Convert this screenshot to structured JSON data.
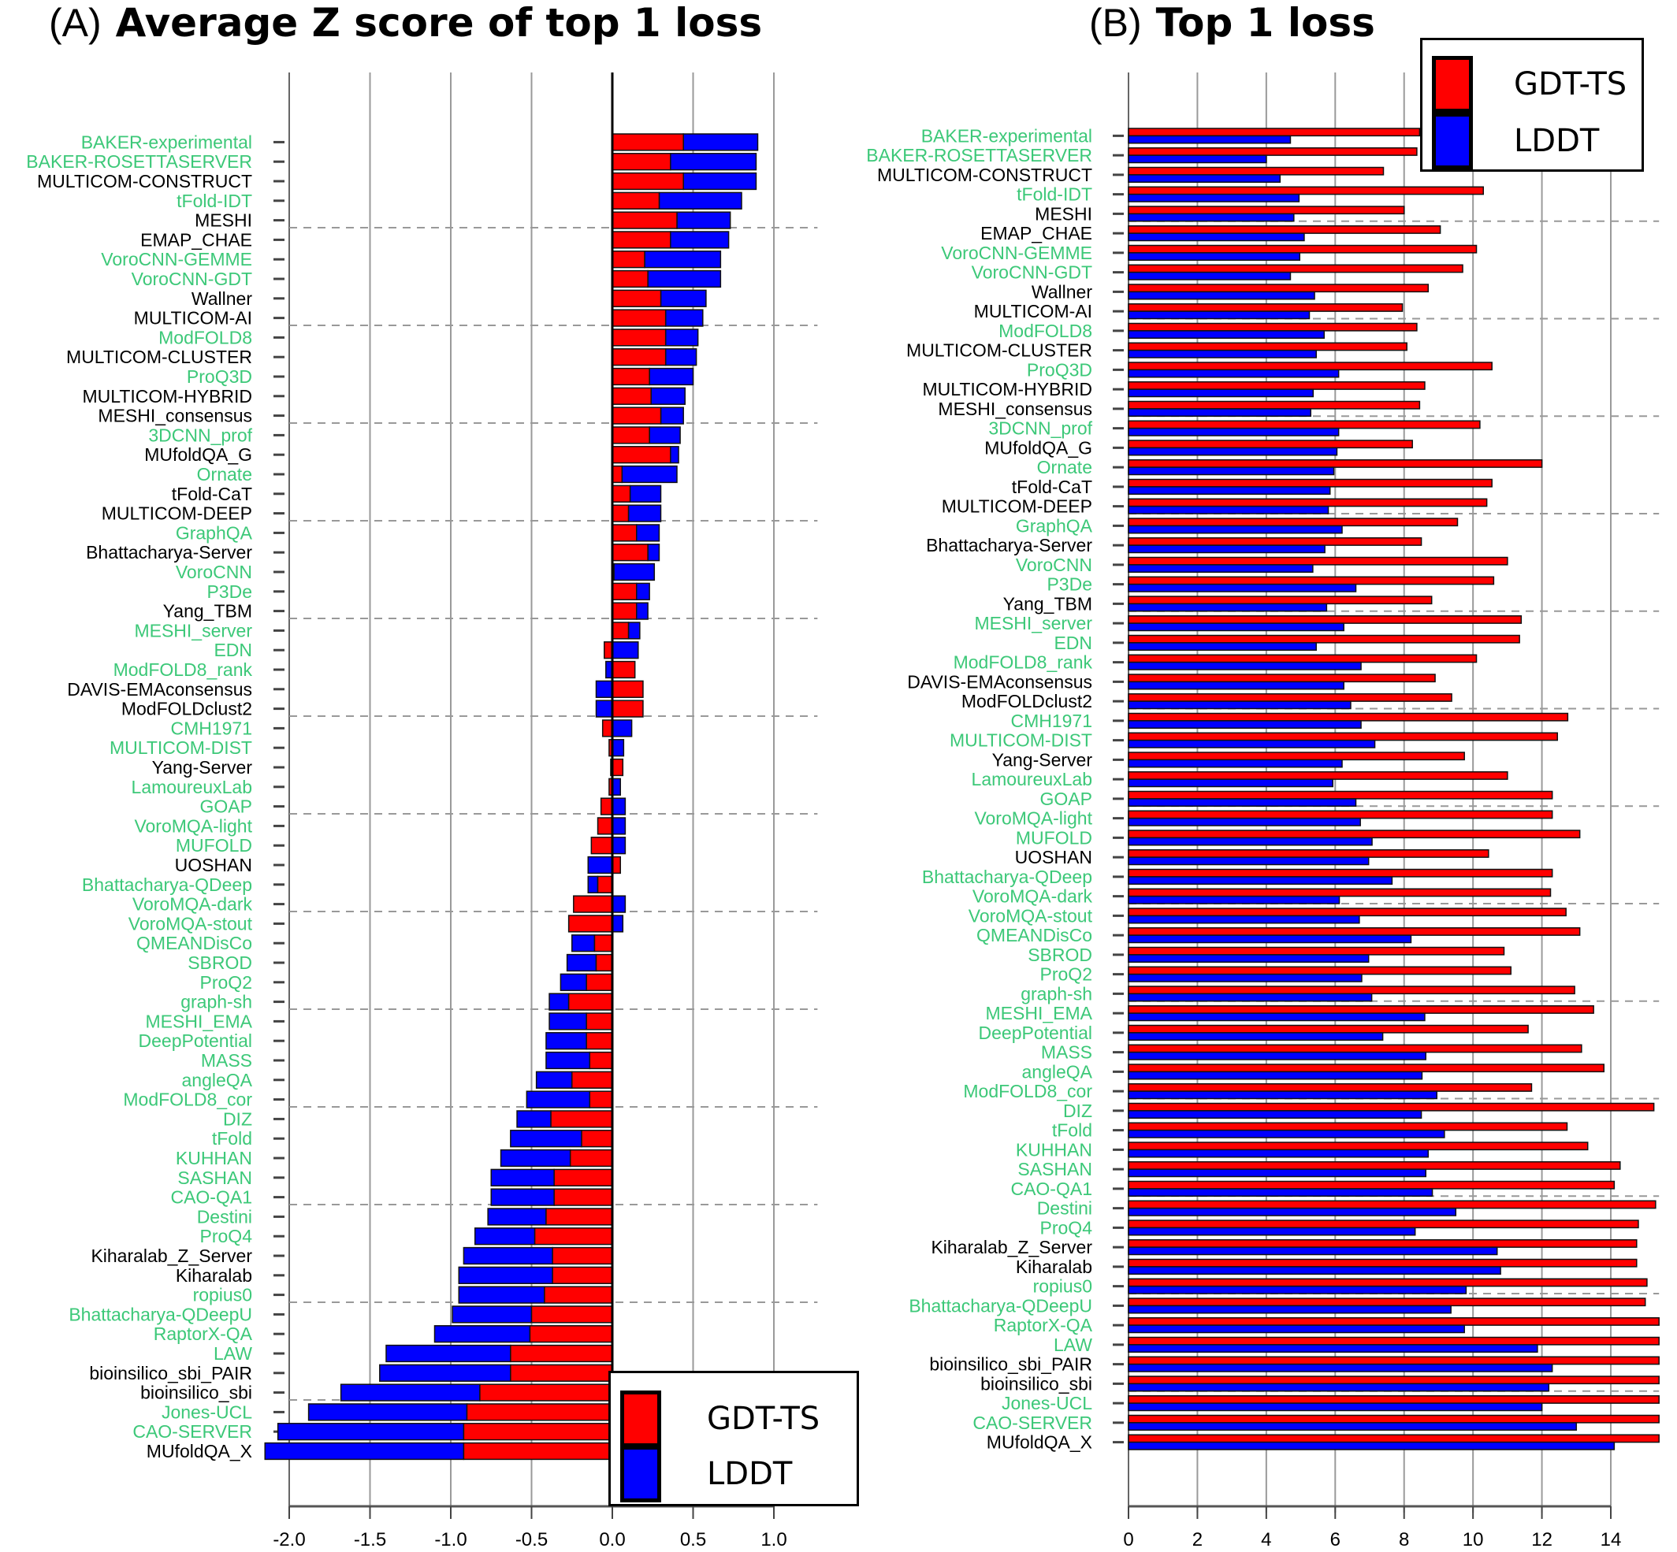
{
  "colors": {
    "gdt": "#ff0000",
    "lddt": "#0000ff",
    "label_highlight": "#3cc878",
    "label_default": "#000000",
    "grid": "#9a9a9a"
  },
  "chart_data": [
    {
      "id": "A",
      "type": "bar",
      "orientation": "horizontal",
      "stacked": true,
      "panel_letter": "(A)",
      "title": "Average Z score of top 1 loss",
      "xlabel": "",
      "ylabel": "",
      "xlim": [
        -2.07,
        1.27
      ],
      "xticks": [
        -2.0,
        -1.5,
        -1.0,
        -0.5,
        0.0,
        0.5,
        1.0
      ],
      "xtick_labels": [
        "-2.0",
        "-1.5",
        "-1.0",
        "-0.5",
        "0.0",
        "0.5",
        "1.0"
      ],
      "grid": true,
      "legend_position": "bottom-right",
      "legend": [
        "GDT-TS",
        "LDDT"
      ],
      "series": [
        {
          "name": "GDT-TS",
          "color": "#ff0000",
          "values": [
            0.44,
            0.36,
            0.44,
            0.29,
            0.4,
            0.36,
            0.2,
            0.22,
            0.3,
            0.33,
            0.33,
            0.33,
            0.23,
            0.24,
            0.3,
            0.23,
            0.36,
            0.06,
            0.11,
            0.1,
            0.15,
            0.22,
            0.01,
            0.15,
            0.15,
            0.1,
            -0.05,
            0.14,
            0.19,
            0.19,
            -0.06,
            -0.02,
            0.065,
            -0.02,
            -0.07,
            -0.09,
            -0.13,
            0.05,
            -0.09,
            -0.24,
            -0.27,
            -0.11,
            -0.1,
            -0.16,
            -0.27,
            -0.16,
            -0.16,
            -0.14,
            -0.25,
            -0.14,
            -0.38,
            -0.19,
            -0.26,
            -0.36,
            -0.36,
            -0.41,
            -0.48,
            -0.37,
            -0.37,
            -0.42,
            -0.5,
            -0.51,
            -0.63,
            -0.63,
            -0.82,
            -0.9,
            -0.92,
            -0.92
          ]
        },
        {
          "name": "LDDT",
          "color": "#0000ff",
          "values": [
            0.46,
            0.53,
            0.45,
            0.51,
            0.33,
            0.36,
            0.47,
            0.45,
            0.28,
            0.23,
            0.2,
            0.19,
            0.27,
            0.21,
            0.14,
            0.19,
            0.05,
            0.34,
            0.19,
            0.2,
            0.14,
            0.07,
            0.25,
            0.08,
            0.07,
            0.07,
            0.16,
            -0.04,
            -0.1,
            -0.1,
            0.12,
            0.07,
            -0.01,
            0.05,
            0.08,
            0.08,
            0.08,
            -0.15,
            -0.06,
            0.08,
            0.065,
            -0.14,
            -0.18,
            -0.16,
            -0.12,
            -0.23,
            -0.25,
            -0.27,
            -0.22,
            -0.39,
            -0.21,
            -0.44,
            -0.43,
            -0.39,
            -0.39,
            -0.36,
            -0.37,
            -0.55,
            -0.58,
            -0.53,
            -0.49,
            -0.59,
            -0.77,
            -0.81,
            -0.86,
            -0.98,
            -1.15,
            -1.23
          ]
        }
      ]
    },
    {
      "id": "B",
      "type": "bar",
      "orientation": "horizontal",
      "stacked": false,
      "panel_letter": "(B)",
      "title": "Top 1 loss",
      "xlabel": "",
      "ylabel": "",
      "xlim": [
        0,
        15.4
      ],
      "xticks": [
        0,
        2,
        4,
        6,
        8,
        10,
        12,
        14
      ],
      "xtick_labels": [
        "0",
        "2",
        "4",
        "6",
        "8",
        "10",
        "12",
        "14"
      ],
      "grid": true,
      "legend_position": "top-right",
      "legend": [
        "GDT-TS",
        "LDDT"
      ],
      "series": [
        {
          "name": "GDT-TS",
          "color": "#ff0000",
          "values": [
            8.45,
            8.37,
            7.4,
            10.3,
            8.0,
            9.05,
            10.1,
            9.7,
            8.7,
            7.95,
            8.37,
            8.08,
            10.55,
            8.6,
            8.45,
            10.2,
            8.24,
            12.0,
            10.55,
            10.4,
            9.55,
            8.5,
            11.0,
            10.6,
            8.8,
            11.4,
            11.35,
            10.1,
            8.9,
            9.38,
            12.75,
            12.45,
            9.75,
            11.0,
            12.3,
            12.3,
            13.1,
            10.45,
            12.3,
            12.25,
            12.7,
            13.1,
            10.9,
            11.1,
            12.95,
            13.5,
            11.6,
            13.15,
            13.8,
            11.7,
            15.25,
            12.73,
            13.33,
            14.27,
            14.1,
            15.3,
            14.8,
            14.75,
            14.75,
            15.05,
            15.0,
            15.5,
            15.5,
            15.5,
            15.5,
            15.5,
            15.5,
            15.5
          ]
        },
        {
          "name": "LDDT",
          "color": "#0000ff",
          "values": [
            4.7,
            4.0,
            4.4,
            4.95,
            4.8,
            5.1,
            4.97,
            4.7,
            5.4,
            5.25,
            5.68,
            5.45,
            6.1,
            5.36,
            5.29,
            6.1,
            6.05,
            5.96,
            5.85,
            5.8,
            6.2,
            5.7,
            5.35,
            6.6,
            5.75,
            6.25,
            5.45,
            6.75,
            6.25,
            6.45,
            6.75,
            7.15,
            6.2,
            5.93,
            6.6,
            6.73,
            7.07,
            6.97,
            7.65,
            6.12,
            6.7,
            8.2,
            6.97,
            6.77,
            7.06,
            8.6,
            7.38,
            8.63,
            8.52,
            8.95,
            8.5,
            9.17,
            8.7,
            8.63,
            8.82,
            9.5,
            8.32,
            10.7,
            10.8,
            9.8,
            9.36,
            9.75,
            11.87,
            12.3,
            12.2,
            12.0,
            13.0,
            14.1
          ]
        }
      ]
    }
  ],
  "categories": [
    "BAKER-experimental",
    "BAKER-ROSETTASERVER",
    "MULTICOM-CONSTRUCT",
    "tFold-IDT",
    "MESHI",
    "EMAP_CHAE",
    "VoroCNN-GEMME",
    "VoroCNN-GDT",
    "Wallner",
    "MULTICOM-AI",
    "ModFOLD8",
    "MULTICOM-CLUSTER",
    "ProQ3D",
    "MULTICOM-HYBRID",
    "MESHI_consensus",
    "3DCNN_prof",
    "MUfoldQA_G",
    "Ornate",
    "tFold-CaT",
    "MULTICOM-DEEP",
    "GraphQA",
    "Bhattacharya-Server",
    "VoroCNN",
    "P3De",
    "Yang_TBM",
    "MESHI_server",
    "EDN",
    "ModFOLD8_rank",
    "DAVIS-EMAconsensus",
    "ModFOLDclust2",
    "CMH1971",
    "MULTICOM-DIST",
    "Yang-Server",
    "LamoureuxLab",
    "GOAP",
    "VoroMQA-light",
    "MUFOLD",
    "UOSHAN",
    "Bhattacharya-QDeep",
    "VoroMQA-dark",
    "VoroMQA-stout",
    "QMEANDisCo",
    "SBROD",
    "ProQ2",
    "graph-sh",
    "MESHI_EMA",
    "DeepPotential",
    "MASS",
    "angleQA",
    "ModFOLD8_cor",
    "DIZ",
    "tFold",
    "KUHHAN",
    "SASHAN",
    "CAO-QA1",
    "Destini",
    "ProQ4",
    "Kiharalab_Z_Server",
    "Kiharalab",
    "ropius0",
    "Bhattacharya-QDeepU",
    "RaptorX-QA",
    "LAW",
    "bioinsilico_sbi_PAIR",
    "bioinsilico_sbi",
    "Jones-UCL",
    "CAO-SERVER",
    "MUfoldQA_X"
  ],
  "category_highlighted": [
    true,
    true,
    false,
    true,
    false,
    false,
    true,
    true,
    false,
    false,
    true,
    false,
    true,
    false,
    false,
    true,
    false,
    true,
    false,
    false,
    true,
    false,
    true,
    true,
    false,
    true,
    true,
    true,
    false,
    false,
    true,
    true,
    false,
    true,
    true,
    true,
    true,
    false,
    true,
    true,
    true,
    true,
    true,
    true,
    true,
    true,
    true,
    true,
    true,
    true,
    true,
    true,
    true,
    true,
    true,
    true,
    true,
    false,
    false,
    true,
    true,
    true,
    true,
    false,
    false,
    true,
    true,
    false
  ],
  "group_separator_every": 5
}
